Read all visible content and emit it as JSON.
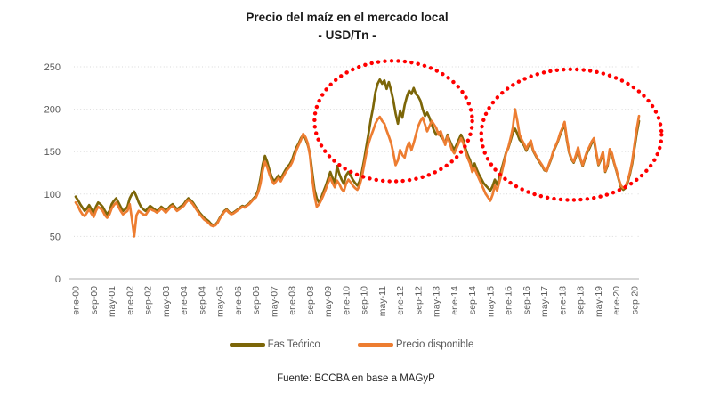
{
  "title": {
    "line1": "Precio del maíz en el mercado local",
    "line2": "- USD/Tn -"
  },
  "footer": "Fuente: BCCBA en base a MAGyP",
  "colors": {
    "fas_teorico": "#7C6608",
    "precio_disponible": "#ED7D31",
    "highlight": "#FF0000",
    "gridline": "#D9D9D9",
    "axis_line": "#BFBFBF",
    "axis_text": "#595959"
  },
  "chart_data": {
    "type": "line",
    "title": "Precio del maíz en el mercado local - USD/Tn -",
    "xlabel": "",
    "ylabel": "USD/Tn",
    "ylim": [
      0,
      250
    ],
    "y_ticks": [
      0,
      50,
      100,
      150,
      200,
      250
    ],
    "grid": "horizontal-dotted",
    "grid_color": "#D9D9D9",
    "axis_color": "#595959",
    "legend_position": "bottom",
    "x_unit": "months since ene-00 (monthly data, Jan-2000 to Nov-2020)",
    "x_tick_interval_months": 8,
    "x_tick_labels": [
      "ene-00",
      "sep-00",
      "may-01",
      "ene-02",
      "sep-02",
      "may-03",
      "ene-04",
      "sep-04",
      "may-05",
      "ene-06",
      "sep-06",
      "may-07",
      "ene-08",
      "sep-08",
      "may-09",
      "ene-10",
      "sep-10",
      "may-11",
      "ene-12",
      "sep-12",
      "may-13",
      "ene-14",
      "sep-14",
      "may-15",
      "ene-16",
      "sep-16",
      "may-17",
      "ene-18",
      "sep-18",
      "may-19",
      "ene-20",
      "sep-20"
    ],
    "series": [
      {
        "name": "Fas Teórico",
        "color": "#7C6608",
        "values": [
          97,
          93,
          88,
          84,
          80,
          83,
          87,
          82,
          78,
          85,
          90,
          88,
          85,
          80,
          76,
          80,
          88,
          92,
          95,
          90,
          85,
          80,
          82,
          85,
          95,
          100,
          103,
          97,
          90,
          85,
          82,
          80,
          83,
          86,
          84,
          82,
          80,
          82,
          85,
          83,
          80,
          83,
          86,
          88,
          85,
          82,
          84,
          86,
          88,
          92,
          95,
          93,
          90,
          86,
          82,
          78,
          75,
          72,
          70,
          68,
          65,
          63,
          64,
          67,
          72,
          76,
          80,
          82,
          79,
          77,
          78,
          80,
          82,
          84,
          86,
          85,
          87,
          89,
          92,
          95,
          98,
          105,
          118,
          135,
          145,
          138,
          128,
          120,
          115,
          118,
          122,
          118,
          123,
          128,
          132,
          135,
          140,
          148,
          155,
          160,
          166,
          170,
          165,
          158,
          148,
          125,
          105,
          95,
          90,
          96,
          103,
          110,
          118,
          126,
          119,
          113,
          133,
          124,
          117,
          112,
          122,
          126,
          122,
          117,
          113,
          110,
          115,
          126,
          140,
          156,
          172,
          188,
          202,
          220,
          230,
          235,
          230,
          234,
          224,
          232,
          222,
          210,
          195,
          183,
          198,
          190,
          205,
          215,
          222,
          218,
          225,
          218,
          215,
          210,
          200,
          192,
          196,
          190,
          182,
          175,
          170,
          173,
          168,
          165,
          160,
          170,
          163,
          157,
          152,
          158,
          164,
          170,
          164,
          154,
          146,
          140,
          130,
          136,
          129,
          123,
          118,
          113,
          110,
          107,
          104,
          109,
          117,
          111,
          119,
          129,
          139,
          149,
          154,
          163,
          172,
          177,
          171,
          164,
          161,
          157,
          151,
          157,
          161,
          151,
          146,
          141,
          137,
          133,
          128,
          127,
          134,
          141,
          150,
          156,
          162,
          170,
          176,
          182,
          163,
          149,
          141,
          137,
          144,
          153,
          141,
          133,
          141,
          149,
          154,
          160,
          163,
          148,
          134,
          140,
          148,
          126,
          133,
          150,
          146,
          136,
          127,
          117,
          108,
          105,
          107,
          114,
          124,
          136,
          154,
          172,
          186
        ]
      },
      {
        "name": "Precio disponible",
        "color": "#ED7D31",
        "values": [
          90,
          86,
          80,
          76,
          74,
          78,
          82,
          77,
          73,
          80,
          85,
          83,
          80,
          75,
          72,
          76,
          83,
          87,
          90,
          85,
          80,
          76,
          78,
          80,
          88,
          70,
          50,
          75,
          80,
          78,
          76,
          75,
          79,
          83,
          81,
          80,
          78,
          80,
          83,
          81,
          78,
          81,
          84,
          86,
          83,
          80,
          82,
          84,
          86,
          90,
          93,
          91,
          88,
          84,
          80,
          76,
          73,
          70,
          68,
          66,
          63,
          62,
          63,
          66,
          71,
          75,
          79,
          81,
          78,
          76,
          77,
          79,
          81,
          83,
          85,
          84,
          86,
          88,
          91,
          94,
          96,
          102,
          112,
          128,
          138,
          132,
          123,
          116,
          112,
          115,
          119,
          115,
          120,
          125,
          129,
          132,
          137,
          144,
          152,
          158,
          164,
          171,
          167,
          160,
          145,
          118,
          98,
          85,
          88,
          93,
          99,
          106,
          113,
          119,
          113,
          108,
          116,
          112,
          106,
          103,
          112,
          117,
          114,
          110,
          107,
          105,
          110,
          120,
          134,
          148,
          160,
          168,
          175,
          183,
          188,
          191,
          186,
          183,
          175,
          168,
          160,
          148,
          134,
          140,
          152,
          146,
          143,
          155,
          161,
          152,
          160,
          170,
          180,
          186,
          190,
          182,
          174,
          180,
          186,
          182,
          178,
          170,
          174,
          166,
          158,
          168,
          160,
          152,
          148,
          154,
          160,
          166,
          160,
          150,
          142,
          136,
          126,
          130,
          124,
          118,
          112,
          106,
          100,
          96,
          92,
          99,
          110,
          104,
          114,
          124,
          136,
          148,
          155,
          166,
          178,
          200,
          186,
          170,
          164,
          159,
          153,
          159,
          163,
          152,
          147,
          142,
          138,
          134,
          129,
          127,
          135,
          142,
          151,
          157,
          163,
          172,
          178,
          185,
          165,
          150,
          142,
          138,
          146,
          155,
          142,
          134,
          143,
          151,
          156,
          162,
          166,
          150,
          135,
          142,
          150,
          127,
          135,
          153,
          148,
          137,
          128,
          118,
          110,
          107,
          109,
          116,
          126,
          139,
          158,
          177,
          192
        ]
      }
    ],
    "annotations": [
      {
        "type": "ellipse",
        "label": "highlight-2011-2013",
        "color": "#FF0000",
        "style": "dotted",
        "cx_month": 141,
        "cy_value": 186,
        "rx_months": 35,
        "ry_value": 71
      },
      {
        "type": "ellipse",
        "label": "highlight-2016-2020",
        "color": "#FF0000",
        "style": "dotted",
        "cx_month": 220,
        "cy_value": 170,
        "rx_months": 40,
        "ry_value": 77
      }
    ]
  },
  "legend": {
    "items": [
      {
        "label": "Fas Teórico"
      },
      {
        "label": "Precio disponible"
      }
    ]
  }
}
